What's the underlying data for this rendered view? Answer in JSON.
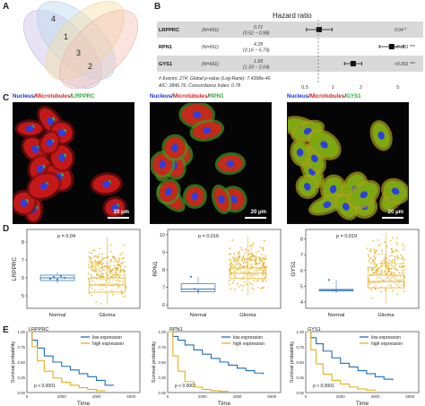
{
  "panels": {
    "A": "A",
    "B": "B",
    "C": "C",
    "D": "D",
    "E": "E"
  },
  "venn": {
    "regions": [
      "4",
      "1",
      "3",
      "2"
    ]
  },
  "forest": {
    "title": "Hazard ratio",
    "rows": [
      {
        "gene": "LRPPRC",
        "n": "(N=691)",
        "hr": "0.71",
        "ci": "(0.52 − 0.98)",
        "p": "0.04 *",
        "est": 0.71,
        "lo": 0.52,
        "hi": 0.98
      },
      {
        "gene": "RPN1",
        "n": "(N=691)",
        "hr": "4.28",
        "ci": "(3.16 − 5.79)",
        "p": "<0.001 ***",
        "est": 4.28,
        "lo": 3.16,
        "hi": 5.79
      },
      {
        "gene": "GYS1",
        "n": "(N=691)",
        "hr": "1.65",
        "ci": "(1.33 − 2.04)",
        "p": "<0.001 ***",
        "est": 1.65,
        "lo": 1.33,
        "hi": 2.04
      }
    ],
    "footnote1": "# Events: 274; Global p-value (Log-Rank): 7.4398e-46",
    "footnote2": "AIC: 2846.76; Concordance Index: 0.78",
    "ticks": [
      "0.5",
      "1",
      "2",
      "5"
    ],
    "colors": {
      "row_shade": "#d9d9d9",
      "box": "#111111"
    }
  },
  "micro": [
    {
      "nucleus": "Nucleus",
      "sep1": "/",
      "microtubules": "Microtubules",
      "sep2": "/",
      "target": "LRPPRC",
      "scale": "20 μm",
      "target_color": "#22b022"
    },
    {
      "nucleus": "Nucleus",
      "sep1": "/",
      "microtubules": "Microtubules",
      "sep2": "/",
      "target": "RPN1",
      "scale": "20 μm",
      "target_color": "#22b022"
    },
    {
      "nucleus": "Nucleus",
      "sep1": "/",
      "microtubules": "Microtubules",
      "sep2": "/",
      "target": "GYS1",
      "scale": "20 μm",
      "target_color": "#22b022"
    }
  ],
  "chart_data": [
    {
      "type": "box",
      "ylabel": "LRPPRC",
      "pvalue": "p = 0.04",
      "categories": [
        "Normal",
        "Glioma"
      ],
      "ticks": [
        "5",
        "6",
        "7",
        "8"
      ],
      "ylim": [
        4.3,
        8.7
      ],
      "boxes": [
        {
          "group": "Normal",
          "min": 5.7,
          "q1": 5.85,
          "median": 6.0,
          "q3": 6.15,
          "max": 6.3
        },
        {
          "group": "Glioma",
          "min": 4.5,
          "q1": 5.2,
          "median": 5.6,
          "q3": 6.0,
          "max": 8.3
        }
      ],
      "normal_points": [
        5.95,
        6.05,
        5.9,
        6.1,
        6.0
      ]
    },
    {
      "type": "box",
      "ylabel": "RPN1",
      "pvalue": "p = 0.016",
      "categories": [
        "Normal",
        "Glioma"
      ],
      "ticks": [
        "6",
        "7",
        "8",
        "9",
        "10"
      ],
      "ylim": [
        5.8,
        10.3
      ],
      "boxes": [
        {
          "group": "Normal",
          "min": 6.6,
          "q1": 6.75,
          "median": 6.9,
          "q3": 7.2,
          "max": 7.6
        },
        {
          "group": "Glioma",
          "min": 6.5,
          "q1": 7.5,
          "median": 7.8,
          "q3": 8.1,
          "max": 9.9
        }
      ],
      "normal_points": [
        7.6,
        6.9,
        6.8
      ]
    },
    {
      "type": "box",
      "ylabel": "GYS1",
      "pvalue": "p = 0.019",
      "categories": [
        "Normal",
        "Glioma"
      ],
      "ticks": [
        "4",
        "5",
        "6",
        "7",
        "8"
      ],
      "ylim": [
        3.6,
        8.6
      ],
      "boxes": [
        {
          "group": "Normal",
          "min": 4.6,
          "q1": 4.7,
          "median": 4.75,
          "q3": 4.8,
          "max": 5.4
        },
        {
          "group": "Glioma",
          "min": 3.9,
          "q1": 4.9,
          "median": 5.3,
          "q3": 5.7,
          "max": 8.4
        }
      ],
      "normal_points": [
        5.4,
        4.75,
        4.7
      ]
    },
    {
      "type": "line",
      "title": "LRPPRC",
      "xlabel": "Time",
      "ylabel": "Survival probability",
      "pvalue": "p < 0.0001",
      "xticks": [
        "0",
        "2000",
        "4000",
        "6000"
      ],
      "yticks": [
        "0.00",
        "0.25",
        "0.50",
        "0.75",
        "1.00"
      ],
      "series": [
        {
          "name": "low expression",
          "color": "#1f6fb5",
          "x": [
            0,
            300,
            600,
            1000,
            1500,
            2000,
            2500,
            3000,
            3500,
            4000,
            4500,
            5000
          ],
          "y": [
            1,
            0.86,
            0.73,
            0.6,
            0.5,
            0.43,
            0.37,
            0.31,
            0.26,
            0.2,
            0.12,
            0.12
          ]
        },
        {
          "name": "high expression",
          "color": "#e5b21b",
          "x": [
            0,
            300,
            600,
            1000,
            1500,
            2000,
            2500,
            3000,
            3500,
            4000,
            4500
          ],
          "y": [
            1,
            0.75,
            0.52,
            0.35,
            0.24,
            0.17,
            0.12,
            0.08,
            0.05,
            0.03,
            0.03
          ]
        }
      ]
    },
    {
      "type": "line",
      "title": "RPN1",
      "xlabel": "Time",
      "ylabel": "Survival probability",
      "pvalue": "p < 0.0001",
      "xticks": [
        "0",
        "2000",
        "4000",
        "6000"
      ],
      "yticks": [
        "0.00",
        "0.25",
        "0.50",
        "0.75",
        "1.00"
      ],
      "series": [
        {
          "name": "low expression",
          "color": "#1f6fb5",
          "x": [
            0,
            300,
            600,
            1000,
            1500,
            2000,
            2500,
            3000,
            3500,
            4000,
            4500,
            5000,
            5500
          ],
          "y": [
            1,
            0.92,
            0.86,
            0.78,
            0.7,
            0.63,
            0.56,
            0.5,
            0.45,
            0.4,
            0.36,
            0.32,
            0.3
          ]
        },
        {
          "name": "high expression",
          "color": "#e5b21b",
          "x": [
            0,
            300,
            600,
            1000,
            1500,
            2000,
            2500,
            3000,
            3500
          ],
          "y": [
            1,
            0.6,
            0.35,
            0.18,
            0.09,
            0.05,
            0.03,
            0.02,
            0.02
          ]
        }
      ]
    },
    {
      "type": "line",
      "title": "GYS1",
      "xlabel": "Time",
      "ylabel": "Survival probability",
      "pvalue": "p < 0.0001",
      "xticks": [
        "0",
        "2000",
        "4000",
        "6000"
      ],
      "yticks": [
        "0.00",
        "0.25",
        "0.50",
        "0.75",
        "1.00"
      ],
      "series": [
        {
          "name": "low expression",
          "color": "#1f6fb5",
          "x": [
            0,
            300,
            600,
            1000,
            1500,
            2000,
            2500,
            3000,
            3500,
            4000,
            4500,
            5000
          ],
          "y": [
            1,
            0.9,
            0.8,
            0.68,
            0.57,
            0.48,
            0.42,
            0.36,
            0.31,
            0.26,
            0.22,
            0.2
          ]
        },
        {
          "name": "high expression",
          "color": "#e5b21b",
          "x": [
            0,
            300,
            600,
            1000,
            1500,
            2000,
            2500,
            3000,
            3500,
            4000
          ],
          "y": [
            1,
            0.7,
            0.47,
            0.3,
            0.2,
            0.14,
            0.09,
            0.06,
            0.04,
            0.03
          ]
        }
      ]
    }
  ]
}
